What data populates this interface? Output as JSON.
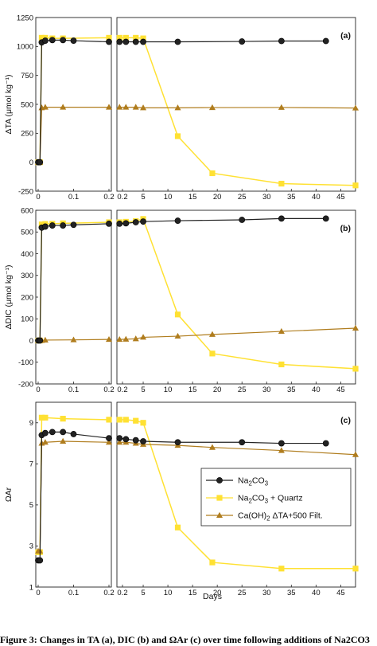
{
  "caption": "Figure 3: Changes in TA (a), DIC (b) and ΩAr (c) over time following additions of Na2CO3",
  "chart_data": {
    "type": "line",
    "xlabel": "Days",
    "x_ticks_left": [
      "0",
      "0.1",
      "0.2"
    ],
    "x_ticks_right": [
      "0.2",
      "5",
      "10",
      "15",
      "20",
      "25",
      "30",
      "35",
      "40",
      "45"
    ],
    "x_left_range": [
      0,
      0.2
    ],
    "x_right_range": [
      0,
      48
    ],
    "colors": {
      "na2co3": "#222222",
      "quartz": "#ffe133",
      "caoh": "#b07d1e"
    },
    "legend": {
      "panel": "c",
      "placement": "right",
      "entries": [
        {
          "series": "na2co3",
          "main": "Na",
          "sub1": "2",
          "mid": "CO",
          "sub2": "3",
          "tail": ""
        },
        {
          "series": "quartz",
          "main": "Na",
          "sub1": "2",
          "mid": "CO",
          "sub2": "3",
          "tail": " + Quartz"
        },
        {
          "series": "caoh",
          "main": "Ca(OH)",
          "sub1": "2",
          "mid": " ΔTA+500 Filt.",
          "sub2": "",
          "tail": ""
        }
      ]
    },
    "panels": [
      {
        "id": "a",
        "label": "(a)",
        "ylabel": "ΔTA (μmol kg⁻¹)",
        "ylim": [
          -250,
          1250
        ],
        "yticks": [
          -250,
          0,
          250,
          500,
          750,
          1000,
          1250
        ],
        "series": {
          "na2co3": {
            "left": [
              [
                0,
                0
              ],
              [
                0.005,
                0
              ],
              [
                0.01,
                1035
              ],
              [
                0.02,
                1050
              ],
              [
                0.04,
                1055
              ],
              [
                0.07,
                1055
              ],
              [
                0.1,
                1050
              ],
              [
                0.2,
                1040
              ]
            ],
            "right": [
              [
                0.2,
                1040
              ],
              [
                1.5,
                1040
              ],
              [
                3.5,
                1040
              ],
              [
                5,
                1040
              ],
              [
                12,
                1040
              ],
              [
                25,
                1043
              ],
              [
                33,
                1047
              ],
              [
                42,
                1047
              ]
            ]
          },
          "quartz": {
            "left": [
              [
                0,
                0
              ],
              [
                0.005,
                0
              ],
              [
                0.01,
                1075
              ],
              [
                0.02,
                1075
              ],
              [
                0.04,
                1070
              ],
              [
                0.07,
                1070
              ],
              [
                0.2,
                1075
              ]
            ],
            "right": [
              [
                0.2,
                1075
              ],
              [
                1.5,
                1075
              ],
              [
                3.5,
                1075
              ],
              [
                5,
                1070
              ],
              [
                12,
                225
              ],
              [
                19,
                -95
              ],
              [
                33,
                -185
              ],
              [
                48,
                -200
              ]
            ]
          },
          "caoh": {
            "left": [
              [
                0,
                0
              ],
              [
                0.005,
                0
              ],
              [
                0.01,
                470
              ],
              [
                0.02,
                475
              ],
              [
                0.07,
                475
              ],
              [
                0.2,
                475
              ]
            ],
            "right": [
              [
                0.2,
                475
              ],
              [
                1.5,
                475
              ],
              [
                3.5,
                475
              ],
              [
                5,
                470
              ],
              [
                12,
                470
              ],
              [
                19,
                472
              ],
              [
                33,
                473
              ],
              [
                48,
                468
              ]
            ]
          }
        }
      },
      {
        "id": "b",
        "label": "(b)",
        "ylabel": "ΔDIC (μmol kg⁻¹)",
        "ylim": [
          -200,
          600
        ],
        "yticks": [
          -200,
          -100,
          0,
          100,
          200,
          300,
          400,
          500,
          600
        ],
        "series": {
          "na2co3": {
            "left": [
              [
                0,
                0
              ],
              [
                0.005,
                0
              ],
              [
                0.01,
                520
              ],
              [
                0.02,
                525
              ],
              [
                0.04,
                530
              ],
              [
                0.07,
                530
              ],
              [
                0.1,
                533
              ],
              [
                0.2,
                538
              ]
            ],
            "right": [
              [
                0.2,
                538
              ],
              [
                1.5,
                540
              ],
              [
                3.5,
                545
              ],
              [
                5,
                548
              ],
              [
                12,
                552
              ],
              [
                25,
                556
              ],
              [
                33,
                562
              ],
              [
                42,
                562
              ]
            ]
          },
          "quartz": {
            "left": [
              [
                0,
                0
              ],
              [
                0.005,
                0
              ],
              [
                0.01,
                535
              ],
              [
                0.02,
                537
              ],
              [
                0.04,
                538
              ],
              [
                0.07,
                540
              ],
              [
                0.2,
                545
              ]
            ],
            "right": [
              [
                0.2,
                545
              ],
              [
                1.5,
                547
              ],
              [
                3.5,
                550
              ],
              [
                5,
                560
              ],
              [
                12,
                120
              ],
              [
                19,
                -60
              ],
              [
                33,
                -110
              ],
              [
                48,
                -130
              ]
            ]
          },
          "caoh": {
            "left": [
              [
                0,
                0
              ],
              [
                0.005,
                0
              ],
              [
                0.01,
                0
              ],
              [
                0.02,
                2
              ],
              [
                0.1,
                3
              ],
              [
                0.2,
                5
              ]
            ],
            "right": [
              [
                0.2,
                5
              ],
              [
                1.5,
                6
              ],
              [
                3.5,
                8
              ],
              [
                5,
                15
              ],
              [
                12,
                20
              ],
              [
                19,
                28
              ],
              [
                33,
                42
              ],
              [
                48,
                57
              ]
            ]
          }
        }
      },
      {
        "id": "c",
        "label": "(c)",
        "ylabel": "ΩAr",
        "ylim": [
          1,
          10
        ],
        "yticks": [
          1,
          3,
          5,
          7,
          9
        ],
        "series": {
          "na2co3": {
            "left": [
              [
                0,
                2.3
              ],
              [
                0.005,
                2.3
              ],
              [
                0.01,
                8.4
              ],
              [
                0.02,
                8.5
              ],
              [
                0.04,
                8.55
              ],
              [
                0.07,
                8.55
              ],
              [
                0.1,
                8.45
              ],
              [
                0.2,
                8.25
              ]
            ],
            "right": [
              [
                0.2,
                8.25
              ],
              [
                1.5,
                8.2
              ],
              [
                3.5,
                8.15
              ],
              [
                5,
                8.1
              ],
              [
                12,
                8.05
              ],
              [
                25,
                8.05
              ],
              [
                33,
                8.0
              ],
              [
                42,
                8.0
              ]
            ]
          },
          "quartz": {
            "left": [
              [
                0,
                2.7
              ],
              [
                0.005,
                2.7
              ],
              [
                0.01,
                9.25
              ],
              [
                0.02,
                9.25
              ],
              [
                0.07,
                9.2
              ],
              [
                0.2,
                9.15
              ]
            ],
            "right": [
              [
                0.2,
                9.15
              ],
              [
                1.5,
                9.15
              ],
              [
                3.5,
                9.1
              ],
              [
                5,
                9.0
              ],
              [
                12,
                3.9
              ],
              [
                19,
                2.2
              ],
              [
                33,
                1.9
              ],
              [
                48,
                1.9
              ]
            ]
          },
          "caoh": {
            "left": [
              [
                0,
                2.75
              ],
              [
                0.005,
                2.75
              ],
              [
                0.01,
                8.0
              ],
              [
                0.02,
                8.05
              ],
              [
                0.07,
                8.1
              ],
              [
                0.2,
                8.05
              ]
            ],
            "right": [
              [
                0.2,
                8.05
              ],
              [
                1.5,
                8.05
              ],
              [
                3.5,
                8.0
              ],
              [
                5,
                7.95
              ],
              [
                12,
                7.9
              ],
              [
                19,
                7.8
              ],
              [
                33,
                7.65
              ],
              [
                48,
                7.45
              ]
            ]
          }
        }
      }
    ]
  }
}
